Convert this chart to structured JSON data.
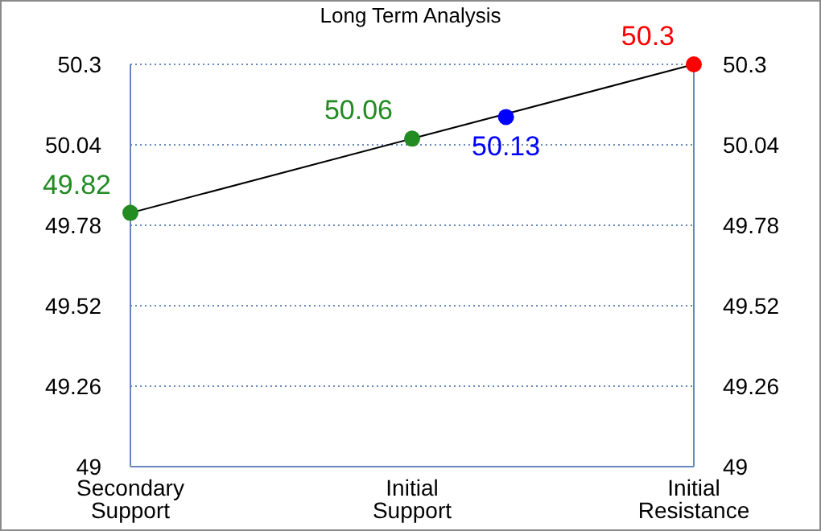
{
  "chart_data": {
    "type": "line",
    "title": "Long Term Analysis",
    "categories": [
      "Secondary Support",
      null,
      null,
      "Initial Support",
      null,
      null,
      "Initial Resistance"
    ],
    "ylim": [
      49,
      50.3
    ],
    "yticks": [
      49,
      49.26,
      49.52,
      49.78,
      50.04,
      50.3
    ],
    "y2lim": [
      49,
      50.3
    ],
    "y2ticks": [
      49,
      49.26,
      49.52,
      49.78,
      50.04,
      50.3
    ],
    "series": [
      {
        "color": "#000000",
        "values": [
          49.82,
          null,
          null,
          50.06,
          null,
          null,
          50.3
        ],
        "colors": [
          "#228b22",
          null,
          null,
          "#228b22",
          null,
          null,
          "#ff0000"
        ]
      },
      {
        "type": "scatter",
        "color": "#0000ff",
        "values": [
          null,
          null,
          null,
          null,
          50.13,
          null,
          null
        ]
      }
    ],
    "marker": "circle",
    "grid": "y",
    "data_labels": true,
    "legend": false
  }
}
